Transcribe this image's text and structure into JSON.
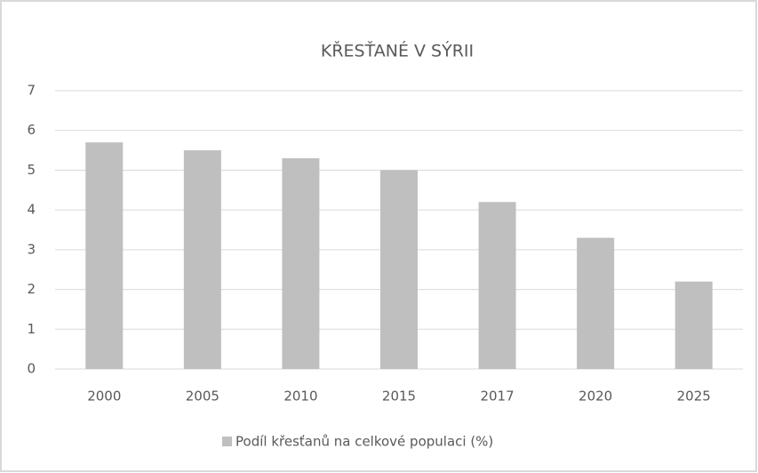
{
  "chart_data": {
    "type": "bar",
    "title": "KŘESŤANÉ V SÝRII",
    "categories": [
      "2000",
      "2005",
      "2010",
      "2015",
      "2017",
      "2020",
      "2025"
    ],
    "series": [
      {
        "name": "Podíl křesťanů na celkové populaci (%)",
        "color": "#bfbfbf",
        "values": [
          5.7,
          5.5,
          5.3,
          5.0,
          4.2,
          3.3,
          2.2
        ]
      }
    ],
    "ylim": [
      0,
      7
    ],
    "yticks": [
      0,
      1,
      2,
      3,
      4,
      5,
      6,
      7
    ],
    "grid": true,
    "legend": "bottom"
  }
}
